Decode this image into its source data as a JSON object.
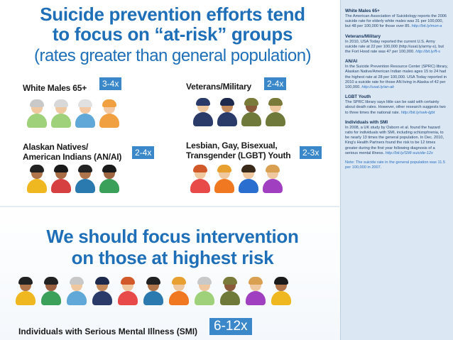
{
  "headline": {
    "line1": "Suicide prevention efforts tend",
    "line2": "to focus on “at-risk” groups",
    "subline": "(rates greater than general population)"
  },
  "groups": [
    {
      "label_line1": "White Males 65+",
      "label_line2": "",
      "badge": "3-4x"
    },
    {
      "label_line1": "Veterans/Military",
      "label_line2": "",
      "badge": "2-4x"
    },
    {
      "label_line1": "Alaskan Natives/",
      "label_line2": "American Indians (AN/AI)",
      "badge": "2-4x"
    },
    {
      "label_line1": "Lesbian, Gay, Bisexual,",
      "label_line2": "Transgender (LGBT) Youth",
      "badge": "2-3x"
    }
  ],
  "focus": {
    "line1": "We should focus intervention",
    "line2": "on those at highest risk"
  },
  "smi": {
    "label": "Individuals with Serious Mental Illness (SMI)",
    "badge": "6-12x"
  },
  "sidebar": [
    {
      "title": "White Males 65+",
      "text": "The American Association of Suicidology reports the 2006 suicide rate for elderly white males was 31 per 100,000, but 48 per 100,000 for those over 85.",
      "link": "http://bit.ly/mon-a"
    },
    {
      "title": "Veterans/Military",
      "text": "In 2010, USA Today reported the current U.S. Army suicide rate at 22 per 100,000 (http://usat.ly/army-s), but the Fort Hood rate was 47 per 100,000.",
      "link": "http://bit.ly/ft-s"
    },
    {
      "title": "AN/AI",
      "text": "In the Suicide Prevention Resource Center (SPRC) library, Alaskan Native/American Indian males ages 15 to 24 had the highest rate at 28 per 100,000. USA Today reported in 2010 a suicide rate for those AN living in Alaska of 42 per 100,000.",
      "link": "http://usat.ly/an-ak"
    },
    {
      "title": "LGBT Youth",
      "text": "The SPRC library says little can be said with certainty about death rates. However, other research suggests two to three times the national rate.",
      "link": "http://bit.ly/swk-lgbt"
    },
    {
      "title": "Individuals with SMI",
      "text": "In 2008, a UK study by Osborn et al. found the hazard ratio for individuals with SMI, including schizophrenia, to be nearly 13 times the general population. In Dec. 2010, King's Health Partners found the risk to be 12 times greater during the first year following diagnosis of a serious mental illness.",
      "link": "http://bit.ly/SMI-suicide-12x"
    }
  ],
  "note": "Note: The suicide rate in the general population was 11.5 per 100,000 in 2007.",
  "colors": {
    "headline_blue": "#1f6fb8",
    "badge_blue": "#3a88c9",
    "sidebar_bg": "#dbe7f3"
  },
  "icons": {
    "white_males": [
      {
        "skin": "#f0c8a0",
        "hair": "#c9c9c9",
        "shirt": "#9fd17a"
      },
      {
        "skin": "#f0c8a0",
        "hair": "#d8d8d8",
        "shirt": "#9fd17a"
      },
      {
        "skin": "#f2c9a2",
        "hair": "#e0e0e0",
        "shirt": "#5fa8d8"
      },
      {
        "skin": "#f2c9a2",
        "hair": "#f0a040",
        "shirt": "#f0a040"
      }
    ],
    "veterans": [
      {
        "skin": "#f0c8a0",
        "hair": "#2a3b6a",
        "shirt": "#2a3b6a"
      },
      {
        "skin": "#c58a5c",
        "hair": "#1e2a4d",
        "shirt": "#2a3b6a"
      },
      {
        "skin": "#8a5a3a",
        "hair": "#7a7a3a",
        "shirt": "#6f7a3a"
      },
      {
        "skin": "#f0c8a0",
        "hair": "#7a7a3a",
        "shirt": "#6f7a3a"
      }
    ],
    "anai": [
      {
        "skin": "#b0744a",
        "hair": "#222222",
        "shirt": "#f0b820"
      },
      {
        "skin": "#a86c44",
        "hair": "#1a1a1a",
        "shirt": "#d64040"
      },
      {
        "skin": "#b0744a",
        "hair": "#222222",
        "shirt": "#2a7ab0"
      },
      {
        "skin": "#9f6540",
        "hair": "#1a1a1a",
        "shirt": "#3aa05a"
      }
    ],
    "lgbt": [
      {
        "skin": "#f0c8a0",
        "hair": "#d25a2a",
        "shirt": "#e84a4a"
      },
      {
        "skin": "#f0c8a0",
        "hair": "#e8a030",
        "shirt": "#f07820"
      },
      {
        "skin": "#f0c8a0",
        "hair": "#3a2a1a",
        "shirt": "#2a6fd0"
      },
      {
        "skin": "#f0c8a0",
        "hair": "#d8a050",
        "shirt": "#a040c0"
      }
    ],
    "smi": [
      {
        "skin": "#b0744a",
        "hair": "#222",
        "shirt": "#f0b820"
      },
      {
        "skin": "#9a6040",
        "hair": "#222",
        "shirt": "#3aa05a"
      },
      {
        "skin": "#f0c8a0",
        "hair": "#c8c8c8",
        "shirt": "#5fa8d8"
      },
      {
        "skin": "#c58a5c",
        "hair": "#1e2a4d",
        "shirt": "#2a3b6a"
      },
      {
        "skin": "#f0c8a0",
        "hair": "#d25a2a",
        "shirt": "#e84a4a"
      },
      {
        "skin": "#b0744a",
        "hair": "#222",
        "shirt": "#2a7ab0"
      },
      {
        "skin": "#f0c8a0",
        "hair": "#e8a030",
        "shirt": "#f07820"
      },
      {
        "skin": "#f0c8a0",
        "hair": "#c9c9c9",
        "shirt": "#9fd17a"
      },
      {
        "skin": "#8a5a3a",
        "hair": "#7a7a3a",
        "shirt": "#6f7a3a"
      },
      {
        "skin": "#f0c8a0",
        "hair": "#d8a050",
        "shirt": "#a040c0"
      },
      {
        "skin": "#b0744a",
        "hair": "#1a1a1a",
        "shirt": "#f0b820"
      }
    ]
  }
}
